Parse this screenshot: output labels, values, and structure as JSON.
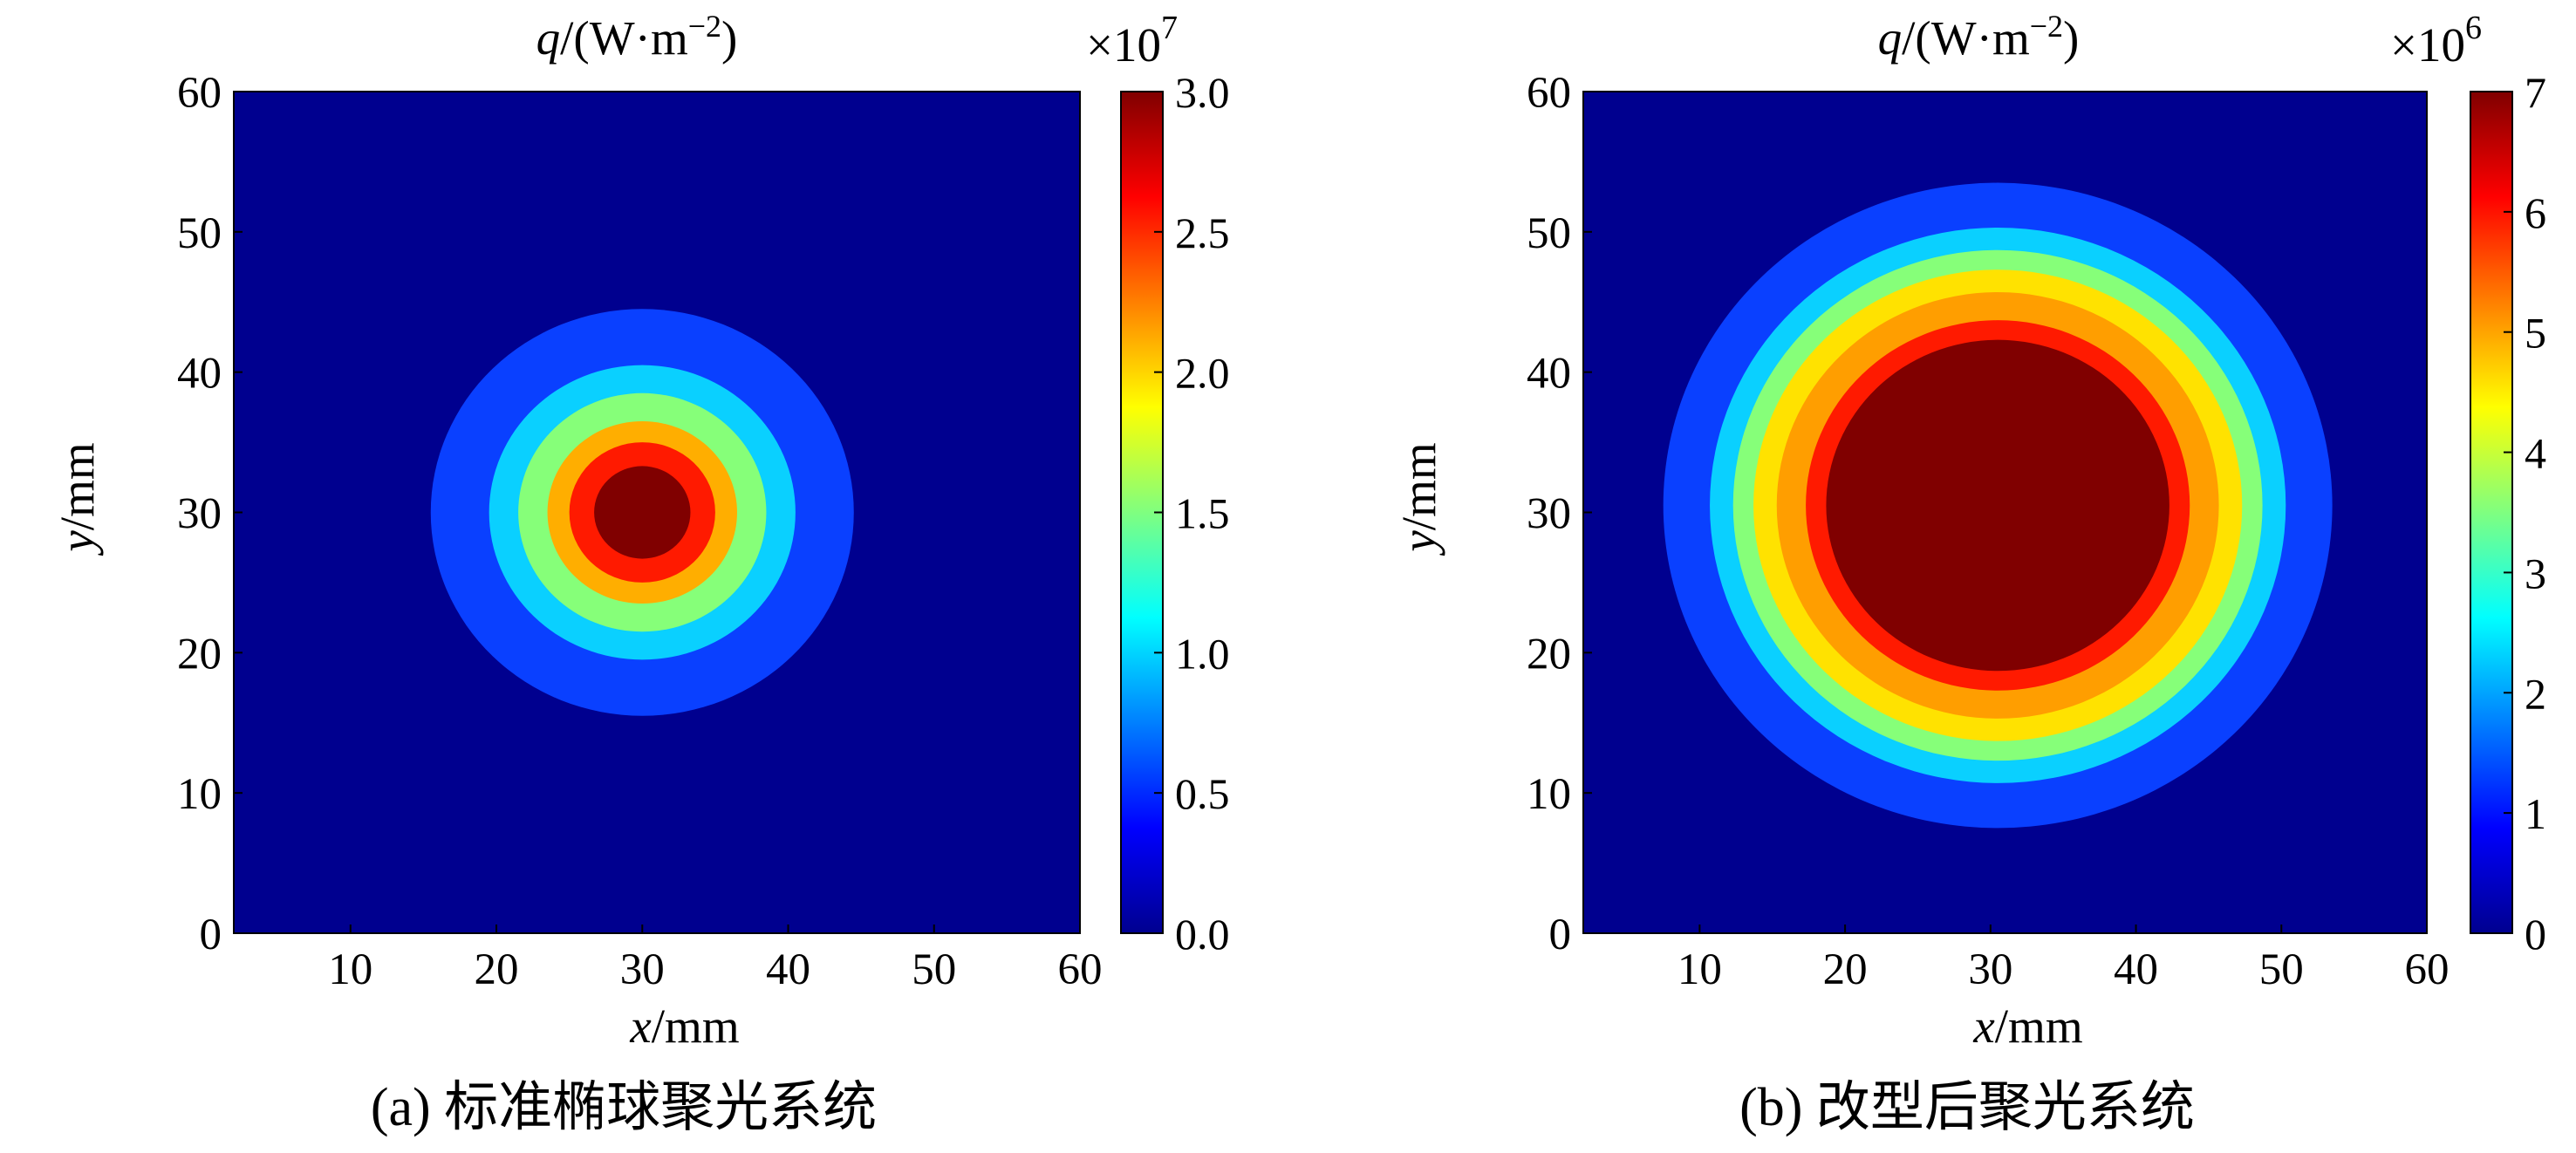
{
  "chart_data": [
    {
      "type": "heatmap",
      "panel": "a",
      "title": "q/(W·m⁻²)",
      "title_parts": {
        "q": "q",
        "rest": "/(W·m",
        "exp": "−2",
        "close": ")"
      },
      "caption": "(a) 标准椭球聚光系统",
      "xlabel": "x/mm",
      "xlabel_parts": {
        "var": "x",
        "unit": "/mm"
      },
      "ylabel": "y/mm",
      "ylabel_parts": {
        "var": "y",
        "unit": "/mm"
      },
      "xlim": [
        2,
        60
      ],
      "ylim": [
        0,
        60
      ],
      "xticks": [
        "10",
        "20",
        "30",
        "40",
        "50",
        "60"
      ],
      "yticks": [
        "0",
        "10",
        "20",
        "30",
        "40",
        "50",
        "60"
      ],
      "colorbar": {
        "multiplier": "×10⁷",
        "multiplier_parts": {
          "base": "×10",
          "exp": "7"
        },
        "range": [
          0,
          3.0
        ],
        "ticks": [
          "0.0",
          "0.5",
          "1.0",
          "1.5",
          "2.0",
          "2.5",
          "3.0"
        ],
        "colormap": "jet"
      },
      "center": [
        30,
        30
      ],
      "contours": [
        {
          "value": 0.3,
          "radius": 14.5,
          "color": "#0a40ff"
        },
        {
          "value": 1.0,
          "radius": 10.5,
          "color": "#0ad0ff"
        },
        {
          "value": 1.5,
          "radius": 8.5,
          "color": "#86ff79"
        },
        {
          "value": 2.1,
          "radius": 6.5,
          "color": "#ffae00"
        },
        {
          "value": 2.6,
          "radius": 5.0,
          "color": "#ff1a00"
        },
        {
          "value": 3.0,
          "radius": 3.3,
          "color": "#800000"
        }
      ],
      "background_value": 0.0,
      "background_color": "#00008f"
    },
    {
      "type": "heatmap",
      "panel": "b",
      "title": "q/(W·m⁻²)",
      "title_parts": {
        "q": "q",
        "rest": "/(W·m",
        "exp": "−2",
        "close": ")"
      },
      "caption": "(b) 改型后聚光系统",
      "xlabel": "x/mm",
      "xlabel_parts": {
        "var": "x",
        "unit": "/mm"
      },
      "ylabel": "y/mm",
      "ylabel_parts": {
        "var": "y",
        "unit": "/mm"
      },
      "xlim": [
        2,
        60
      ],
      "ylim": [
        0,
        60
      ],
      "xticks": [
        "10",
        "20",
        "30",
        "40",
        "50",
        "60"
      ],
      "yticks": [
        "0",
        "10",
        "20",
        "30",
        "40",
        "50",
        "60"
      ],
      "colorbar": {
        "multiplier": "×10⁶",
        "multiplier_parts": {
          "base": "×10",
          "exp": "6"
        },
        "range": [
          0,
          7
        ],
        "ticks": [
          "0",
          "1",
          "2",
          "3",
          "4",
          "5",
          "6",
          "7"
        ],
        "colormap": "jet"
      },
      "center": [
        30.5,
        30.5
      ],
      "contours": [
        {
          "value": 0.8,
          "radius": 23.0,
          "color": "#0a40ff"
        },
        {
          "value": 2.2,
          "radius": 19.8,
          "color": "#0ad0ff"
        },
        {
          "value": 3.3,
          "radius": 18.2,
          "color": "#86ff79"
        },
        {
          "value": 4.2,
          "radius": 16.8,
          "color": "#ffe200"
        },
        {
          "value": 5.3,
          "radius": 15.2,
          "color": "#ff9e00"
        },
        {
          "value": 6.2,
          "radius": 13.2,
          "color": "#ff1a00"
        },
        {
          "value": 7.0,
          "radius": 11.8,
          "color": "#800000"
        }
      ],
      "background_value": 0.0,
      "background_color": "#00008f"
    }
  ]
}
